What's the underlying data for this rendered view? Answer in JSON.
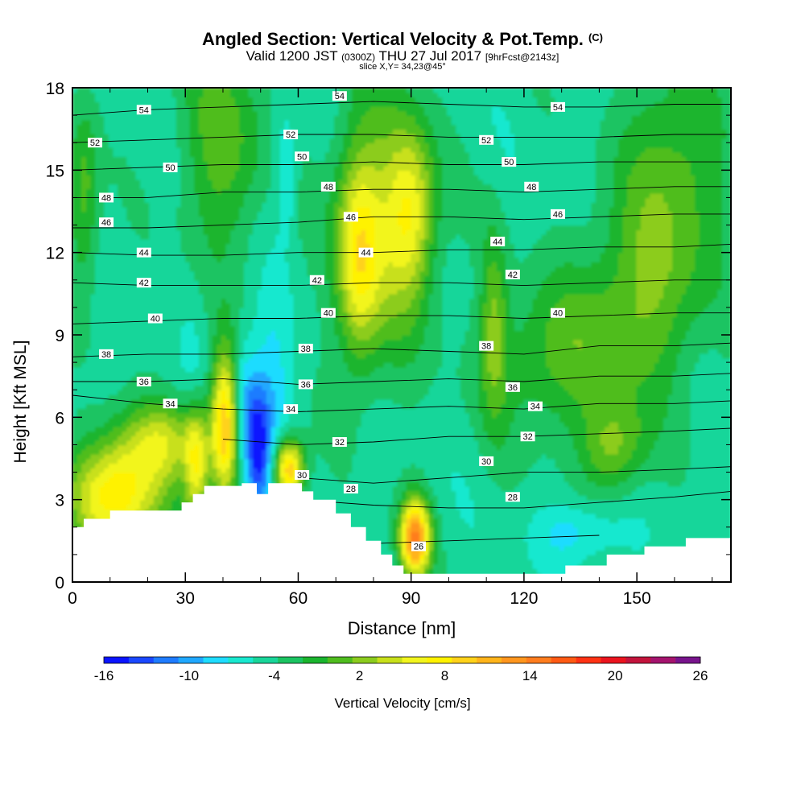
{
  "header": {
    "title": "Angled Section: Vertical Velocity & Pot.Temp.",
    "title_unit": "(C)",
    "valid_prefix": "Valid 1200 JST",
    "valid_utc": "(0300Z)",
    "valid_date": "THU 27 Jul 2017",
    "forecast": "[9hrFcst@2143z]",
    "slice": "slice X,Y= 34,23@45°"
  },
  "colorbar": {
    "label": "Vertical Velocity [cm/s]",
    "tick_labels": [
      "-16",
      "-10",
      "-4",
      "2",
      "8",
      "14",
      "20",
      "26"
    ],
    "tick_values": [
      -16,
      -10,
      -4,
      2,
      8,
      14,
      20,
      26
    ],
    "min": -16,
    "max": 26,
    "step": 2,
    "colors": [
      "#0a14ff",
      "#1a48ff",
      "#1f7cff",
      "#20a8ff",
      "#1fdcff",
      "#19e8cf",
      "#19d69a",
      "#1bc462",
      "#1ab52e",
      "#4fbd1e",
      "#8ccc1e",
      "#c8e01a",
      "#f2f51e",
      "#fff200",
      "#ffd21a",
      "#ffb41a",
      "#ff961e",
      "#ff7d1e",
      "#ff5a14",
      "#ff3214",
      "#eb141e",
      "#c3143c",
      "#a5146e",
      "#78148c"
    ]
  },
  "chart_data": {
    "type": "heatmap",
    "title": "Angled Section: Vertical Velocity & Pot.Temp. (C)",
    "xlabel": "Distance [nm]",
    "ylabel": "Height [Kft MSL]",
    "xlim": [
      0,
      175
    ],
    "ylim": [
      0,
      18
    ],
    "x_ticks": [
      0,
      30,
      60,
      90,
      120,
      150
    ],
    "x_tick_labels": [
      "0",
      "30",
      "60",
      "90",
      "120",
      "150"
    ],
    "y_ticks": [
      0,
      3,
      6,
      9,
      12,
      15,
      18
    ],
    "y_tick_labels": [
      "0",
      "3",
      "6",
      "9",
      "12",
      "15",
      "18"
    ],
    "background_value": -3,
    "vertical_velocity_features": [
      {
        "x": 12,
        "y": 3.2,
        "peak": 12,
        "sx": 9,
        "sy": 1.4
      },
      {
        "x": 24,
        "y": 5.2,
        "peak": 5,
        "sx": 8,
        "sy": 1.0
      },
      {
        "x": 33,
        "y": 4.2,
        "peak": 7,
        "sx": 2.2,
        "sy": 1.6
      },
      {
        "x": 40.5,
        "y": 5.8,
        "peak": 14,
        "sx": 2.6,
        "sy": 1.9
      },
      {
        "x": 45.5,
        "y": 6.2,
        "peak": -8,
        "sx": 2.2,
        "sy": 1.6
      },
      {
        "x": 49.5,
        "y": 4.8,
        "peak": -14,
        "sx": 2.2,
        "sy": 1.6
      },
      {
        "x": 53,
        "y": 7.0,
        "peak": -7,
        "sx": 4,
        "sy": 2.4
      },
      {
        "x": 57.5,
        "y": 4.1,
        "peak": 15,
        "sx": 2.8,
        "sy": 0.8
      },
      {
        "x": 44,
        "y": 7.8,
        "peak": -4,
        "sx": 3,
        "sy": 1.4
      },
      {
        "x": 32,
        "y": 8.0,
        "peak": -4,
        "sx": 2,
        "sy": 2.0
      },
      {
        "x": 57,
        "y": 14.8,
        "peak": -7,
        "sx": 1.8,
        "sy": 1.4
      },
      {
        "x": 55,
        "y": 15.8,
        "peak": -4,
        "sx": 2.5,
        "sy": 2.5
      },
      {
        "x": 76,
        "y": 11.8,
        "peak": 7,
        "sx": 4,
        "sy": 2.6
      },
      {
        "x": 90,
        "y": 13.5,
        "peak": 6,
        "sx": 4.5,
        "sy": 2.2
      },
      {
        "x": 82,
        "y": 13.0,
        "peak": 4,
        "sx": 9,
        "sy": 3.5
      },
      {
        "x": 91,
        "y": 1.6,
        "peak": 18,
        "sx": 2.8,
        "sy": 1.0
      },
      {
        "x": 144,
        "y": 4.9,
        "peak": 4,
        "sx": 6,
        "sy": 1.2
      },
      {
        "x": 134,
        "y": 1.8,
        "peak": -7,
        "sx": 8,
        "sy": 0.8
      },
      {
        "x": 105,
        "y": 4.2,
        "peak": -3,
        "sx": 9,
        "sy": 1.2
      },
      {
        "x": 169,
        "y": 12.0,
        "peak": -3,
        "sx": 3,
        "sy": 3.5
      },
      {
        "x": 3,
        "y": 14,
        "peak": 3,
        "sx": 3,
        "sy": 2.5
      },
      {
        "x": 112,
        "y": 9.5,
        "peak": 3,
        "sx": 2.5,
        "sy": 2.5
      },
      {
        "x": 150,
        "y": 10.0,
        "peak": 3,
        "sx": 12,
        "sy": 2.5
      },
      {
        "x": 160,
        "y": 15.0,
        "peak": 3,
        "sx": 10,
        "sy": 3.0
      },
      {
        "x": 40,
        "y": 16.0,
        "peak": 3,
        "sx": 8,
        "sy": 3.0
      },
      {
        "x": 126,
        "y": 8.0,
        "peak": 2,
        "sx": 12,
        "sy": 2.0
      }
    ],
    "terrain_height_kft": {
      "x": [
        0,
        3,
        3,
        10,
        10,
        29,
        29,
        32,
        32,
        35,
        35,
        45,
        45,
        49,
        49,
        52,
        52,
        61,
        61,
        64,
        64,
        70,
        70,
        74,
        74,
        78,
        78,
        82,
        82,
        85,
        85,
        88,
        88,
        91,
        91,
        131,
        131,
        142,
        142,
        152,
        152,
        163,
        163,
        175
      ],
      "y": [
        2.0,
        2.0,
        2.3,
        2.3,
        2.6,
        2.6,
        2.9,
        2.9,
        3.2,
        3.2,
        3.5,
        3.5,
        3.6,
        3.6,
        3.2,
        3.2,
        3.6,
        3.6,
        3.3,
        3.3,
        3.0,
        3.0,
        2.5,
        2.5,
        2.0,
        2.0,
        1.5,
        1.5,
        1.0,
        1.0,
        0.6,
        0.6,
        0.3,
        0.3,
        0.3,
        0.3,
        0.6,
        0.6,
        1.0,
        1.0,
        1.3,
        1.3,
        1.6,
        1.6
      ]
    },
    "potential_temperature_isotherms": {
      "x": [
        0,
        20,
        40,
        60,
        80,
        100,
        120,
        140,
        160,
        175
      ],
      "lines": [
        {
          "value": 26,
          "y": [
            null,
            null,
            null,
            null,
            1.4,
            1.5,
            1.6,
            1.7,
            null,
            null
          ]
        },
        {
          "value": 28,
          "y": [
            null,
            null,
            null,
            3.0,
            2.8,
            2.7,
            2.7,
            2.9,
            3.1,
            3.3
          ]
        },
        {
          "value": 30,
          "y": [
            null,
            null,
            null,
            3.8,
            3.6,
            3.8,
            4.0,
            4.0,
            4.1,
            4.2
          ]
        },
        {
          "value": 32,
          "y": [
            null,
            null,
            5.2,
            5.0,
            5.1,
            5.3,
            5.3,
            5.4,
            5.5,
            5.6
          ]
        },
        {
          "value": 34,
          "y": [
            6.8,
            6.5,
            6.3,
            6.2,
            6.3,
            6.4,
            6.3,
            6.5,
            6.5,
            6.6
          ]
        },
        {
          "value": 36,
          "y": [
            7.3,
            7.3,
            7.4,
            7.2,
            7.3,
            7.4,
            7.3,
            7.5,
            7.5,
            7.6
          ]
        },
        {
          "value": 38,
          "y": [
            8.2,
            8.3,
            8.3,
            8.4,
            8.5,
            8.4,
            8.3,
            8.6,
            8.6,
            8.7
          ]
        },
        {
          "value": 40,
          "y": [
            9.4,
            9.5,
            9.6,
            9.6,
            9.7,
            9.7,
            9.6,
            9.7,
            9.8,
            9.8
          ]
        },
        {
          "value": 42,
          "y": [
            10.9,
            10.8,
            10.8,
            10.8,
            10.9,
            10.9,
            10.8,
            10.9,
            11.0,
            11.0
          ]
        },
        {
          "value": 44,
          "y": [
            12.0,
            11.9,
            11.9,
            12.0,
            12.0,
            12.1,
            12.1,
            12.2,
            12.2,
            12.3
          ]
        },
        {
          "value": 46,
          "y": [
            12.9,
            12.9,
            13.0,
            13.1,
            13.3,
            13.3,
            13.2,
            13.3,
            13.4,
            13.4
          ]
        },
        {
          "value": 48,
          "y": [
            14.0,
            14.0,
            14.2,
            14.2,
            14.3,
            14.3,
            14.2,
            14.3,
            14.4,
            14.4
          ]
        },
        {
          "value": 50,
          "y": [
            15.0,
            15.1,
            15.2,
            15.2,
            15.3,
            15.2,
            15.2,
            15.3,
            15.3,
            15.3
          ]
        },
        {
          "value": 52,
          "y": [
            16.0,
            16.1,
            16.2,
            16.3,
            16.3,
            16.2,
            16.2,
            16.2,
            16.3,
            16.3
          ]
        },
        {
          "value": 54,
          "y": [
            17.0,
            17.2,
            17.3,
            17.4,
            17.5,
            17.4,
            17.3,
            17.3,
            17.4,
            17.4
          ]
        }
      ],
      "labels": [
        {
          "text": "54",
          "x": 19,
          "y": 17.2
        },
        {
          "text": "54",
          "x": 71,
          "y": 17.7
        },
        {
          "text": "54",
          "x": 129,
          "y": 17.3
        },
        {
          "text": "52",
          "x": 6,
          "y": 16.0
        },
        {
          "text": "52",
          "x": 58,
          "y": 16.3
        },
        {
          "text": "52",
          "x": 110,
          "y": 16.1
        },
        {
          "text": "50",
          "x": 26,
          "y": 15.1
        },
        {
          "text": "50",
          "x": 61,
          "y": 15.5
        },
        {
          "text": "50",
          "x": 116,
          "y": 15.3
        },
        {
          "text": "48",
          "x": 9,
          "y": 14.0
        },
        {
          "text": "48",
          "x": 68,
          "y": 14.4
        },
        {
          "text": "48",
          "x": 122,
          "y": 14.4
        },
        {
          "text": "46",
          "x": 9,
          "y": 13.1
        },
        {
          "text": "46",
          "x": 74,
          "y": 13.3
        },
        {
          "text": "46",
          "x": 129,
          "y": 13.4
        },
        {
          "text": "44",
          "x": 19,
          "y": 12.0
        },
        {
          "text": "44",
          "x": 78,
          "y": 12.0
        },
        {
          "text": "44",
          "x": 113,
          "y": 12.4
        },
        {
          "text": "42",
          "x": 19,
          "y": 10.9
        },
        {
          "text": "42",
          "x": 65,
          "y": 11.0
        },
        {
          "text": "42",
          "x": 117,
          "y": 11.2
        },
        {
          "text": "40",
          "x": 22,
          "y": 9.6
        },
        {
          "text": "40",
          "x": 68,
          "y": 9.8
        },
        {
          "text": "40",
          "x": 129,
          "y": 9.8
        },
        {
          "text": "38",
          "x": 9,
          "y": 8.3
        },
        {
          "text": "38",
          "x": 62,
          "y": 8.5
        },
        {
          "text": "38",
          "x": 110,
          "y": 8.6
        },
        {
          "text": "36",
          "x": 19,
          "y": 7.3
        },
        {
          "text": "36",
          "x": 62,
          "y": 7.2
        },
        {
          "text": "36",
          "x": 117,
          "y": 7.1
        },
        {
          "text": "34",
          "x": 26,
          "y": 6.5
        },
        {
          "text": "34",
          "x": 58,
          "y": 6.3
        },
        {
          "text": "34",
          "x": 123,
          "y": 6.4
        },
        {
          "text": "32",
          "x": 71,
          "y": 5.1
        },
        {
          "text": "32",
          "x": 121,
          "y": 5.3
        },
        {
          "text": "30",
          "x": 110,
          "y": 4.4
        },
        {
          "text": "30",
          "x": 61,
          "y": 3.9
        },
        {
          "text": "28",
          "x": 74,
          "y": 3.4
        },
        {
          "text": "28",
          "x": 117,
          "y": 3.1
        },
        {
          "text": "26",
          "x": 92,
          "y": 1.3
        }
      ]
    }
  }
}
